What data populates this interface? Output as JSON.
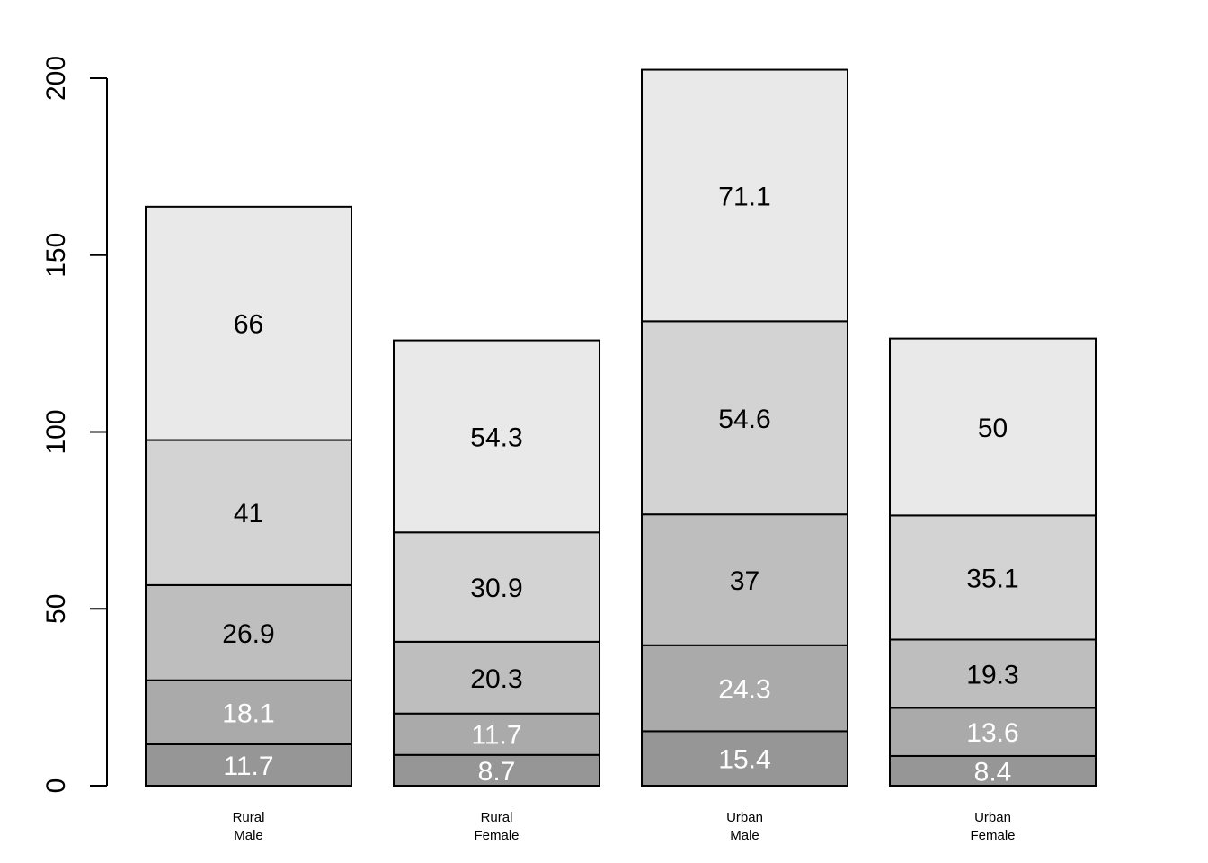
{
  "chart_data": {
    "type": "bar",
    "stacked": true,
    "categories": [
      [
        "Rural",
        "Male"
      ],
      [
        "Rural",
        "Female"
      ],
      [
        "Urban",
        "Male"
      ],
      [
        "Urban",
        "Female"
      ]
    ],
    "series": [
      {
        "values": [
          11.7,
          8.7,
          15.4,
          8.4
        ],
        "color": "#969696",
        "label_color": "#ffffff"
      },
      {
        "values": [
          18.1,
          11.7,
          24.3,
          13.6
        ],
        "color": "#aaaaaa",
        "label_color": "#ffffff"
      },
      {
        "values": [
          26.9,
          20.3,
          37,
          19.3
        ],
        "color": "#bebebe",
        "label_color": "#000000"
      },
      {
        "values": [
          41,
          30.9,
          54.6,
          35.1
        ],
        "color": "#d3d3d3",
        "label_color": "#000000"
      },
      {
        "values": [
          66,
          54.3,
          71.1,
          50
        ],
        "color": "#e9e9e9",
        "label_color": "#000000"
      }
    ],
    "segment_labels": [
      [
        "11.7",
        "18.1",
        "26.9",
        "41",
        "66"
      ],
      [
        "8.7",
        "11.7",
        "20.3",
        "30.9",
        "54.3"
      ],
      [
        "15.4",
        "24.3",
        "37",
        "54.6",
        "71.1"
      ],
      [
        "8.4",
        "13.6",
        "19.3",
        "35.1",
        "50"
      ]
    ],
    "y_ticks": [
      "0",
      "50",
      "100",
      "150",
      "200"
    ],
    "ylim": [
      0,
      200
    ],
    "title": "",
    "xlabel": "",
    "ylabel": "",
    "grid": false,
    "legend": "none"
  }
}
